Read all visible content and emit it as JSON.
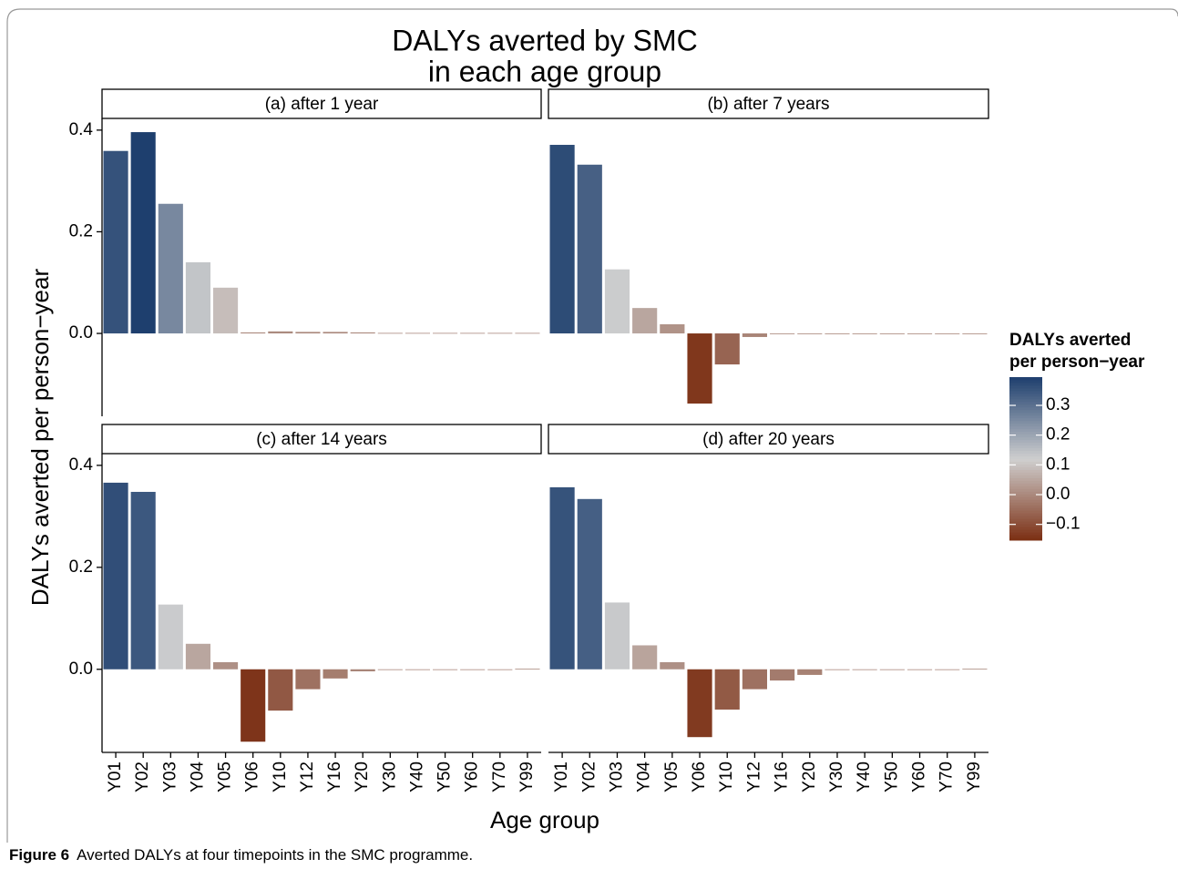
{
  "chart_data": {
    "type": "bar",
    "title_lines": [
      "DALYs averted by SMC",
      "in each age group"
    ],
    "y_label": "DALYs averted per person−year",
    "x_label": "Age group",
    "categories": [
      "Y01",
      "Y02",
      "Y03",
      "Y04",
      "Y05",
      "Y06",
      "Y10",
      "Y12",
      "Y16",
      "Y20",
      "Y30",
      "Y40",
      "Y50",
      "Y60",
      "Y70",
      "Y99"
    ],
    "panels": [
      {
        "title": "(a) after 1 year",
        "values": [
          0.359,
          0.396,
          0.255,
          0.14,
          0.09,
          0.002,
          0.004,
          0.003,
          0.003,
          0.002,
          0.001,
          0.001,
          0.001,
          0.001,
          0.001,
          0.001
        ]
      },
      {
        "title": "(b) after 7 years",
        "values": [
          0.371,
          0.332,
          0.126,
          0.05,
          0.018,
          -0.138,
          -0.061,
          -0.007,
          -0.001,
          -0.001,
          -0.001,
          -0.001,
          -0.001,
          -0.001,
          -0.001,
          -0.001
        ]
      },
      {
        "title": "(c) after 14 years",
        "values": [
          0.366,
          0.348,
          0.127,
          0.05,
          0.014,
          -0.142,
          -0.081,
          -0.039,
          -0.018,
          -0.004,
          -0.001,
          -0.001,
          -0.001,
          -0.001,
          -0.001,
          0.001
        ]
      },
      {
        "title": "(d) after 20 years",
        "values": [
          0.357,
          0.334,
          0.131,
          0.047,
          0.014,
          -0.133,
          -0.079,
          -0.039,
          -0.022,
          -0.011,
          -0.001,
          -0.001,
          -0.001,
          -0.001,
          -0.001,
          0.001
        ]
      }
    ],
    "ylim": [
      -0.163,
      0.423
    ],
    "yticks": [
      {
        "value": 0,
        "label": "0.0"
      },
      {
        "value": 0.2,
        "label": "0.2"
      },
      {
        "value": 0.4,
        "label": "0.4"
      }
    ],
    "legend": {
      "title_lines": [
        "DALYs averted",
        "per person−year"
      ],
      "limits": [
        -0.153,
        0.395
      ],
      "ticks": [
        0.3,
        0.2,
        0.1,
        {
          "value": 0,
          "label": "0.0"
        },
        {
          "value": -0.1,
          "label": "−0.1"
        }
      ],
      "low": "#7b2e12",
      "mid": "#cfcfcf",
      "high": "#1e3f6e",
      "midpoint": 0.12
    },
    "caption": {
      "label": "Figure 6",
      "text": "Averted DALYs at four timepoints in the SMC programme."
    }
  }
}
